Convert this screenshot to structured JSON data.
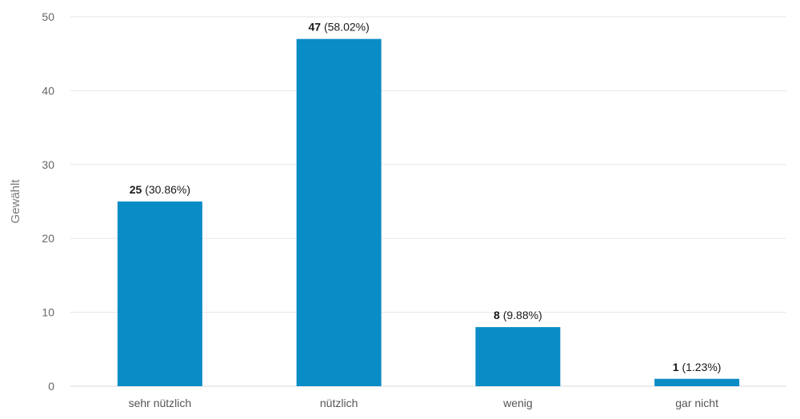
{
  "chart_data": {
    "type": "bar",
    "categories": [
      "sehr nützlich",
      "nützlich",
      "wenig",
      "gar nicht"
    ],
    "values": [
      25,
      47,
      8,
      1
    ],
    "data_labels": [
      {
        "count": "25",
        "percent": " (30.86%)"
      },
      {
        "count": "47",
        "percent": " (58.02%)"
      },
      {
        "count": "8",
        "percent": " (9.88%)"
      },
      {
        "count": "1",
        "percent": " (1.23%)"
      }
    ],
    "title": "",
    "xlabel": "",
    "ylabel": "Gewählt",
    "ylim": [
      0,
      50
    ],
    "yticks": [
      0,
      10,
      20,
      30,
      40,
      50
    ],
    "grid": true,
    "bar_color": "#0a8cc6"
  }
}
